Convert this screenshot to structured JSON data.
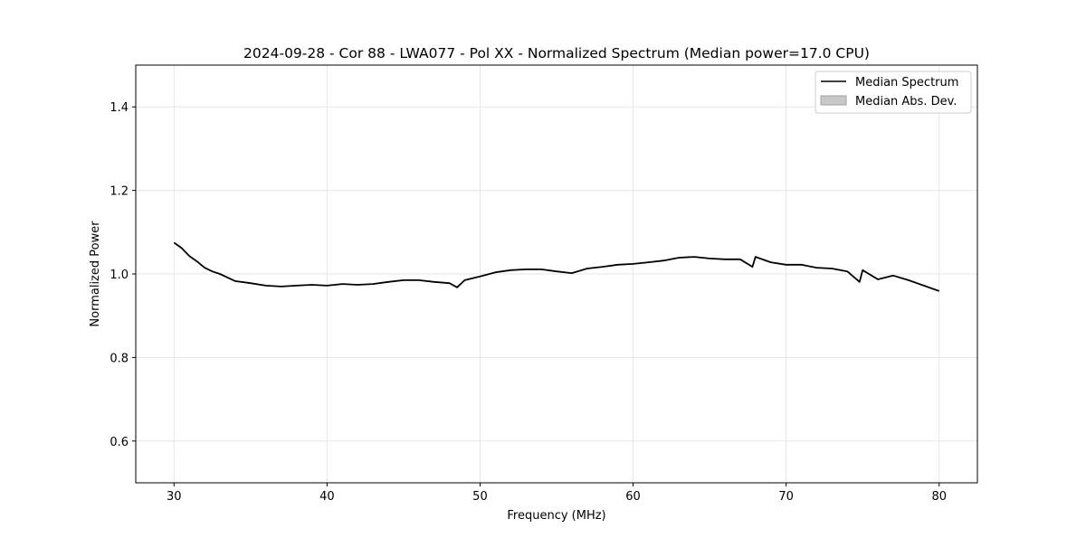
{
  "chart_data": {
    "type": "line",
    "title": "2024-09-28 - Cor 88 - LWA077 - Pol XX - Normalized Spectrum (Median power=17.0 CPU)",
    "xlabel": "Frequency (MHz)",
    "ylabel": "Normalized Power",
    "xlim": [
      27.5,
      82.5
    ],
    "ylim": [
      0.5,
      1.5
    ],
    "xticks": [
      30,
      40,
      50,
      60,
      70,
      80
    ],
    "yticks": [
      0.6,
      0.8,
      1.0,
      1.2,
      1.4
    ],
    "ytick_labels": [
      "0.6",
      "0.8",
      "1.0",
      "1.2",
      "1.4"
    ],
    "grid": true,
    "legend_position": "top-right",
    "legend": [
      "Median Spectrum",
      "Median Abs. Dev."
    ],
    "colors": {
      "line": "#000000",
      "mad_fill": "#c8c8c8",
      "mad_edge": "#a0a0a0",
      "grid": "#e6e6e6"
    },
    "series": [
      {
        "name": "Median Spectrum",
        "x": [
          30,
          30.5,
          31,
          31.5,
          32,
          32.5,
          33,
          34,
          35,
          36,
          37,
          38,
          39,
          40,
          41,
          42,
          43,
          44,
          45,
          46,
          47,
          48,
          48.5,
          49,
          50,
          51,
          52,
          53,
          54,
          55,
          56,
          57,
          58,
          59,
          60,
          61,
          62,
          63,
          64,
          65,
          66,
          67,
          67.8,
          68,
          69,
          70,
          71,
          72,
          73,
          74,
          74.8,
          75,
          76,
          77,
          78,
          79,
          80
        ],
        "y": [
          1.075,
          1.062,
          1.043,
          1.03,
          1.015,
          1.006,
          1.0,
          0.983,
          0.978,
          0.972,
          0.97,
          0.972,
          0.974,
          0.972,
          0.976,
          0.974,
          0.976,
          0.981,
          0.985,
          0.985,
          0.981,
          0.978,
          0.968,
          0.985,
          0.994,
          1.004,
          1.009,
          1.011,
          1.011,
          1.006,
          1.002,
          1.013,
          1.017,
          1.022,
          1.024,
          1.028,
          1.032,
          1.039,
          1.041,
          1.037,
          1.035,
          1.035,
          1.017,
          1.041,
          1.028,
          1.022,
          1.022,
          1.015,
          1.013,
          1.006,
          0.981,
          1.009,
          0.987,
          0.996,
          0.985,
          0.972,
          0.959
        ]
      }
    ]
  }
}
